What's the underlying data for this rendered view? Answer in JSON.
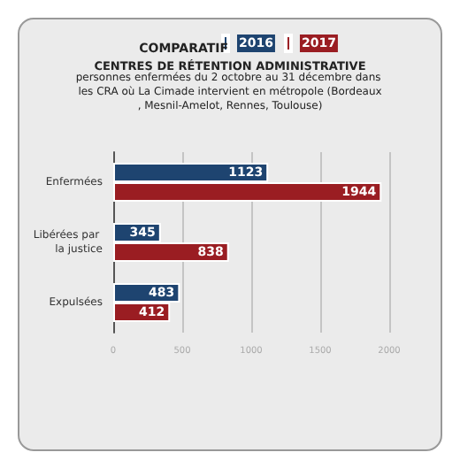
{
  "chart_data": {
    "type": "bar",
    "orientation": "horizontal",
    "title": "COMPARATIF",
    "subtitle": "CENTRES DE RÉTENTION ADMINISTRATIVE",
    "annotations": [
      "personnes enfermées du 2 octobre au 31 décembre dans les CRA où La Cimade intervient en métropole (Bordeaux, Mesnil-Amelot, Rennes, Toulouse)"
    ],
    "categories": [
      "Enfermées",
      "Libérées par la justice",
      "Expulsées"
    ],
    "series": [
      {
        "name": "2016",
        "color": "#1e4470",
        "values": [
          1123,
          345,
          483
        ]
      },
      {
        "name": "2017",
        "color": "#9a1d22",
        "values": [
          1944,
          838,
          412
        ]
      }
    ],
    "xlim": [
      0,
      2000
    ],
    "xticks": [
      0,
      500,
      1000,
      1500,
      2000
    ],
    "grid": "x",
    "legend": "top",
    "data_labels": true
  }
}
